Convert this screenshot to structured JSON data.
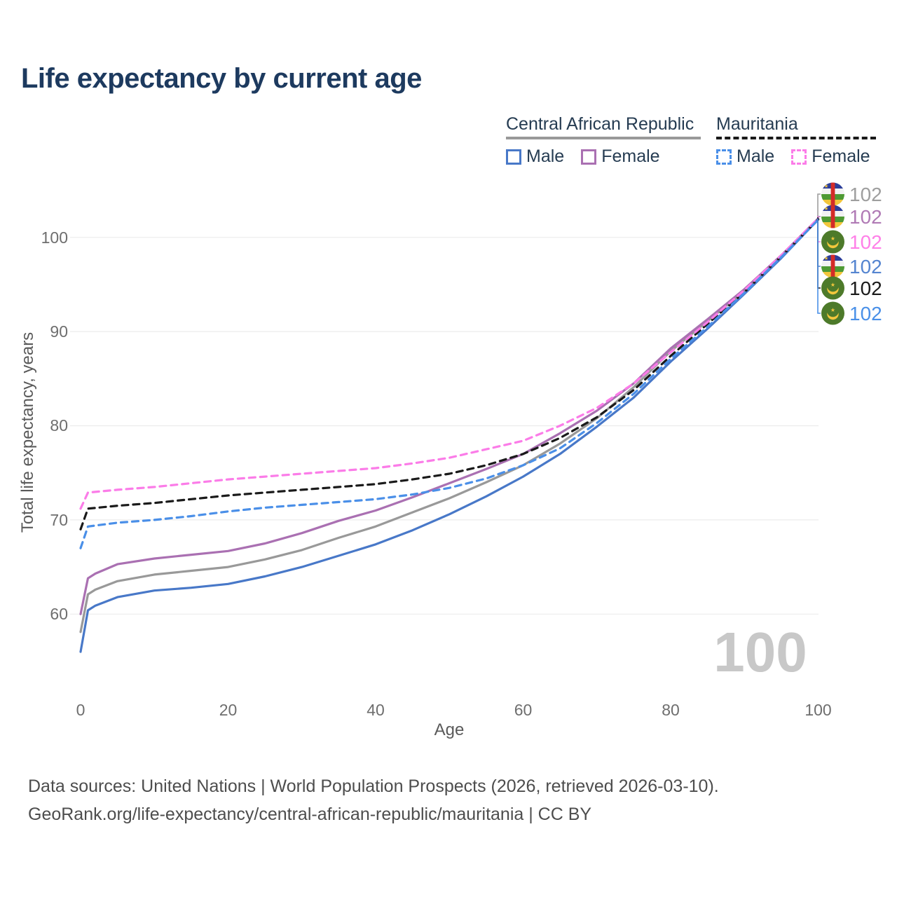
{
  "title": "Life expectancy by current age",
  "watermark": "100",
  "legend": {
    "groups": [
      {
        "label": "Central African Republic",
        "line_color": "#999999",
        "line_dashed": false,
        "items": [
          {
            "label": "Male",
            "color": "#4878c8",
            "dashed": false
          },
          {
            "label": "Female",
            "color": "#aa70b2",
            "dashed": false
          }
        ]
      },
      {
        "label": "Mauritania",
        "line_color": "#1a1a1a",
        "line_dashed": true,
        "items": [
          {
            "label": "Male",
            "color": "#4a8fe8",
            "dashed": true
          },
          {
            "label": "Female",
            "color": "#fb7ce8",
            "dashed": true
          }
        ]
      }
    ]
  },
  "axes": {
    "x": {
      "label": "Age",
      "tick_labels": [
        "0",
        "20",
        "40",
        "60",
        "80",
        "100"
      ],
      "range": [
        0,
        100
      ]
    },
    "y": {
      "label": "Total life expectancy, years",
      "tick_labels": [
        "60",
        "70",
        "80",
        "90",
        "100"
      ],
      "range": [
        55,
        103
      ]
    }
  },
  "end_labels": [
    {
      "value": "102",
      "flag": "car",
      "color": "#9e9e9e",
      "series": "Central African Republic — both sexes"
    },
    {
      "value": "102",
      "flag": "car",
      "color": "#b07ab5",
      "series": "Central African Republic — female"
    },
    {
      "value": "102",
      "flag": "mrt",
      "color": "#ff80e8",
      "series": "Mauritania — female"
    },
    {
      "value": "102",
      "flag": "car",
      "color": "#5585d0",
      "series": "Central African Republic — male"
    },
    {
      "value": "102",
      "flag": "mrt",
      "color": "#1a1a1a",
      "series": "Mauritania — both sexes"
    },
    {
      "value": "102",
      "flag": "mrt",
      "color": "#4a90e8",
      "series": "Mauritania — male"
    }
  ],
  "footer": {
    "line1": "Data sources: United Nations | World Population Prospects (2026, retrieved 2026-03-10).",
    "line2": "GeoRank.org/life-expectancy/central-african-republic/mauritania | CC BY"
  },
  "chart_data": {
    "type": "line",
    "title": "Life expectancy by current age",
    "xlabel": "Age",
    "ylabel": "Total life expectancy, years",
    "xlim": [
      0,
      100
    ],
    "ylim": [
      55,
      103
    ],
    "grid": "horizontal",
    "series": [
      {
        "id": "car-both",
        "name": "Central African Republic (both sexes)",
        "color": "#999999",
        "dash": false,
        "points": [
          [
            0,
            58.1
          ],
          [
            1,
            62.1
          ],
          [
            2,
            62.6
          ],
          [
            5,
            63.5
          ],
          [
            10,
            64.2
          ],
          [
            15,
            64.6
          ],
          [
            20,
            65.0
          ],
          [
            25,
            65.8
          ],
          [
            30,
            66.8
          ],
          [
            35,
            68.1
          ],
          [
            40,
            69.3
          ],
          [
            45,
            70.8
          ],
          [
            50,
            72.3
          ],
          [
            55,
            74.0
          ],
          [
            60,
            75.8
          ],
          [
            65,
            78.1
          ],
          [
            70,
            80.8
          ],
          [
            75,
            84.1
          ],
          [
            80,
            87.9
          ],
          [
            85,
            91.1
          ],
          [
            90,
            94.3
          ],
          [
            95,
            98.0
          ],
          [
            100,
            101.95
          ]
        ]
      },
      {
        "id": "car-female",
        "name": "Central African Republic — Female",
        "color": "#aa70b2",
        "dash": false,
        "points": [
          [
            0,
            60.0
          ],
          [
            1,
            63.8
          ],
          [
            2,
            64.3
          ],
          [
            5,
            65.3
          ],
          [
            10,
            65.9
          ],
          [
            15,
            66.3
          ],
          [
            20,
            66.7
          ],
          [
            25,
            67.5
          ],
          [
            30,
            68.6
          ],
          [
            35,
            69.9
          ],
          [
            40,
            71.0
          ],
          [
            45,
            72.4
          ],
          [
            50,
            73.9
          ],
          [
            55,
            75.4
          ],
          [
            60,
            77.0
          ],
          [
            65,
            79.2
          ],
          [
            70,
            81.6
          ],
          [
            75,
            84.5
          ],
          [
            80,
            88.2
          ],
          [
            85,
            91.3
          ],
          [
            90,
            94.5
          ],
          [
            95,
            98.1
          ],
          [
            100,
            102.0
          ]
        ]
      },
      {
        "id": "car-male",
        "name": "Central African Republic — Male",
        "color": "#4878c8",
        "dash": false,
        "points": [
          [
            0,
            56.0
          ],
          [
            1,
            60.4
          ],
          [
            2,
            60.9
          ],
          [
            5,
            61.8
          ],
          [
            10,
            62.5
          ],
          [
            15,
            62.8
          ],
          [
            20,
            63.2
          ],
          [
            25,
            64.0
          ],
          [
            30,
            65.0
          ],
          [
            35,
            66.2
          ],
          [
            40,
            67.4
          ],
          [
            45,
            68.9
          ],
          [
            50,
            70.6
          ],
          [
            55,
            72.5
          ],
          [
            60,
            74.6
          ],
          [
            65,
            77.0
          ],
          [
            70,
            79.9
          ],
          [
            75,
            83.0
          ],
          [
            80,
            86.8
          ],
          [
            85,
            90.3
          ],
          [
            90,
            94.0
          ],
          [
            95,
            97.8
          ],
          [
            100,
            101.9
          ]
        ]
      },
      {
        "id": "mrt-both",
        "name": "Mauritania (both sexes)",
        "color": "#1a1a1a",
        "dash": true,
        "points": [
          [
            0,
            69.0
          ],
          [
            1,
            71.2
          ],
          [
            5,
            71.5
          ],
          [
            10,
            71.8
          ],
          [
            15,
            72.2
          ],
          [
            20,
            72.6
          ],
          [
            25,
            72.9
          ],
          [
            30,
            73.2
          ],
          [
            35,
            73.5
          ],
          [
            40,
            73.8
          ],
          [
            45,
            74.3
          ],
          [
            50,
            74.9
          ],
          [
            55,
            75.8
          ],
          [
            60,
            77.0
          ],
          [
            65,
            78.7
          ],
          [
            70,
            80.9
          ],
          [
            75,
            83.8
          ],
          [
            80,
            87.4
          ],
          [
            85,
            90.8
          ],
          [
            90,
            94.2
          ],
          [
            95,
            98.0
          ],
          [
            100,
            101.9
          ]
        ]
      },
      {
        "id": "mrt-female",
        "name": "Mauritania — Female",
        "color": "#fb7ce8",
        "dash": true,
        "points": [
          [
            0,
            71.2
          ],
          [
            1,
            72.9
          ],
          [
            5,
            73.2
          ],
          [
            10,
            73.5
          ],
          [
            15,
            73.9
          ],
          [
            20,
            74.3
          ],
          [
            25,
            74.6
          ],
          [
            30,
            74.9
          ],
          [
            35,
            75.2
          ],
          [
            40,
            75.5
          ],
          [
            45,
            76.0
          ],
          [
            50,
            76.6
          ],
          [
            55,
            77.5
          ],
          [
            60,
            78.4
          ],
          [
            65,
            80.0
          ],
          [
            70,
            81.9
          ],
          [
            75,
            84.5
          ],
          [
            80,
            87.8
          ],
          [
            85,
            91.0
          ],
          [
            90,
            94.4
          ],
          [
            95,
            98.1
          ],
          [
            100,
            102.0
          ]
        ]
      },
      {
        "id": "mrt-male",
        "name": "Mauritania — Male",
        "color": "#4a8fe8",
        "dash": true,
        "points": [
          [
            0,
            67.0
          ],
          [
            1,
            69.3
          ],
          [
            5,
            69.7
          ],
          [
            10,
            70.0
          ],
          [
            15,
            70.4
          ],
          [
            20,
            70.9
          ],
          [
            25,
            71.3
          ],
          [
            30,
            71.6
          ],
          [
            35,
            71.9
          ],
          [
            40,
            72.2
          ],
          [
            45,
            72.7
          ],
          [
            50,
            73.4
          ],
          [
            55,
            74.4
          ],
          [
            60,
            75.8
          ],
          [
            65,
            77.6
          ],
          [
            70,
            80.3
          ],
          [
            75,
            83.4
          ],
          [
            80,
            87.1
          ],
          [
            85,
            90.5
          ],
          [
            90,
            94.1
          ],
          [
            95,
            97.9
          ],
          [
            100,
            101.85
          ]
        ]
      }
    ]
  }
}
